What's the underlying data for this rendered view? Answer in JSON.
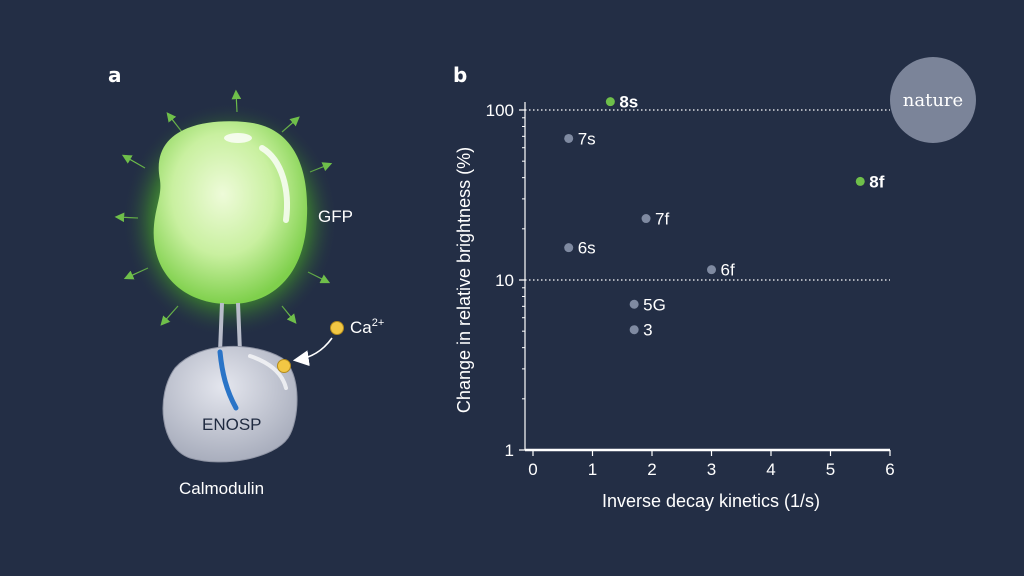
{
  "panel_a": {
    "letter": "a",
    "gfp_label": "GFP",
    "calcium_label": "Ca",
    "calcium_charge": "2+",
    "enosp_label": "ENOSP",
    "calmodulin_label": "Calmodulin"
  },
  "panel_b": {
    "letter": "b"
  },
  "logo": {
    "text": "nature"
  },
  "colors": {
    "background": "#232e45",
    "highlight_point": "#6fbf4a",
    "normal_point": "#7f8aa1",
    "gfp_green": "#c7efa4",
    "calcium_yellow": "#f2c744",
    "enosp_blue": "#2a74c7",
    "calmodulin_grey": "#c9ccd6",
    "logo_circle": "#7b8499"
  },
  "chart_data": {
    "type": "scatter",
    "xlabel": "Inverse decay kinetics (1/s)",
    "ylabel": "Change in relative brightness (%)",
    "xlim": [
      0,
      6
    ],
    "ylim": [
      1,
      100
    ],
    "yscale": "log",
    "xticks": [
      "0",
      "1",
      "2",
      "3",
      "4",
      "5",
      "6"
    ],
    "yticks": [
      "1",
      "10",
      "100"
    ],
    "reference_lines_y": [
      10,
      100
    ],
    "points": [
      {
        "label": "8s",
        "x": 1.3,
        "y": 112,
        "highlight": true
      },
      {
        "label": "7s",
        "x": 0.6,
        "y": 68,
        "highlight": false
      },
      {
        "label": "8f",
        "x": 5.5,
        "y": 38,
        "highlight": true
      },
      {
        "label": "7f",
        "x": 1.9,
        "y": 23,
        "highlight": false
      },
      {
        "label": "6s",
        "x": 0.6,
        "y": 15.5,
        "highlight": false
      },
      {
        "label": "6f",
        "x": 3.0,
        "y": 11.5,
        "highlight": false
      },
      {
        "label": "5G",
        "x": 1.7,
        "y": 7.2,
        "highlight": false
      },
      {
        "label": "3",
        "x": 1.7,
        "y": 5.1,
        "highlight": false
      }
    ]
  }
}
